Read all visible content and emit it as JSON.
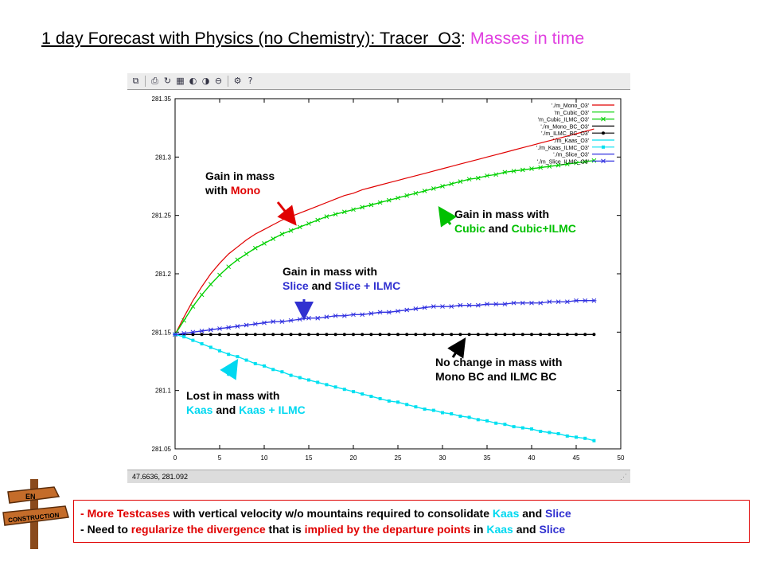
{
  "title": {
    "main": "1 day Forecast with Physics (no Chemistry): Tracer_O3",
    "sep": ": ",
    "highlight": "Masses in time",
    "highlight_color": "#e040e0"
  },
  "toolbar": {
    "icons": [
      "copy-icon",
      "print-icon",
      "replot-icon",
      "grid-icon",
      "zoom-prev-icon",
      "zoom-next-icon",
      "unzoom-icon",
      "settings-icon",
      "help-icon"
    ]
  },
  "status": {
    "coords": "47.6636, 281.092"
  },
  "chart_data": {
    "type": "line",
    "xlim": [
      0,
      50
    ],
    "ylim": [
      281.05,
      281.35
    ],
    "x_ticks": [
      "0",
      "5",
      "10",
      "15",
      "20",
      "25",
      "30",
      "35",
      "40",
      "45",
      "50"
    ],
    "y_ticks": [
      "281.05",
      "281.1",
      "281.15",
      "281.2",
      "281.25",
      "281.3",
      "281.35"
    ],
    "grid": false,
    "legend_position": "top-right",
    "x": [
      0,
      1,
      2,
      3,
      4,
      5,
      6,
      7,
      8,
      9,
      10,
      11,
      12,
      13,
      14,
      15,
      16,
      17,
      18,
      19,
      20,
      21,
      22,
      23,
      24,
      25,
      26,
      27,
      28,
      29,
      30,
      31,
      32,
      33,
      34,
      35,
      36,
      37,
      38,
      39,
      40,
      41,
      42,
      43,
      44,
      45,
      46,
      47
    ],
    "series": [
      {
        "name": "'./m_Mono_O3'",
        "color": "#e00000",
        "marker": "none",
        "values": [
          281.148,
          281.163,
          281.177,
          281.189,
          281.2,
          281.209,
          281.217,
          281.223,
          281.229,
          281.234,
          281.238,
          281.242,
          281.246,
          281.249,
          281.252,
          281.255,
          281.258,
          281.261,
          281.264,
          281.267,
          281.269,
          281.272,
          281.274,
          281.276,
          281.278,
          281.28,
          281.282,
          281.284,
          281.286,
          281.288,
          281.29,
          281.292,
          281.294,
          281.296,
          281.298,
          281.3,
          281.302,
          281.304,
          281.306,
          281.308,
          281.31,
          281.312,
          281.314,
          281.316,
          281.318,
          281.32,
          281.322,
          281.324
        ]
      },
      {
        "name": "'m_Cubic_O3'",
        "color": "#00d000",
        "marker": "none",
        "values": [
          281.148,
          281.16,
          281.172,
          281.182,
          281.191,
          281.199,
          281.206,
          281.212,
          281.217,
          281.222,
          281.226,
          281.23,
          281.234,
          281.237,
          281.24,
          281.243,
          281.246,
          281.249,
          281.251,
          281.253,
          281.255,
          281.257,
          281.259,
          281.261,
          281.263,
          281.265,
          281.267,
          281.269,
          281.271,
          281.273,
          281.275,
          281.277,
          281.279,
          281.281,
          281.282,
          281.284,
          281.285,
          281.287,
          281.288,
          281.289,
          281.29,
          281.291,
          281.292,
          281.293,
          281.294,
          281.295,
          281.296,
          281.297
        ]
      },
      {
        "name": "'m_Cubic_ILMC_O3'",
        "color": "#00d000",
        "marker": "x",
        "values": [
          281.148,
          281.16,
          281.172,
          281.182,
          281.191,
          281.199,
          281.206,
          281.212,
          281.217,
          281.222,
          281.226,
          281.23,
          281.234,
          281.237,
          281.24,
          281.243,
          281.246,
          281.249,
          281.251,
          281.253,
          281.255,
          281.257,
          281.259,
          281.261,
          281.263,
          281.265,
          281.267,
          281.269,
          281.271,
          281.273,
          281.275,
          281.277,
          281.279,
          281.281,
          281.282,
          281.284,
          281.285,
          281.287,
          281.288,
          281.289,
          281.29,
          281.291,
          281.292,
          281.293,
          281.294,
          281.295,
          281.296,
          281.297
        ]
      },
      {
        "name": "'./m_Mono_BC_O3'",
        "color": "#000000",
        "marker": "none",
        "values": [
          281.148,
          281.148,
          281.148,
          281.148,
          281.148,
          281.148,
          281.148,
          281.148,
          281.148,
          281.148,
          281.148,
          281.148,
          281.148,
          281.148,
          281.148,
          281.148,
          281.148,
          281.148,
          281.148,
          281.148,
          281.148,
          281.148,
          281.148,
          281.148,
          281.148,
          281.148,
          281.148,
          281.148,
          281.148,
          281.148,
          281.148,
          281.148,
          281.148,
          281.148,
          281.148,
          281.148,
          281.148,
          281.148,
          281.148,
          281.148,
          281.148,
          281.148,
          281.148,
          281.148,
          281.148,
          281.148,
          281.148,
          281.148
        ]
      },
      {
        "name": "'./m_ILMC_BC_O3'",
        "color": "#000000",
        "marker": "dot",
        "values": [
          281.148,
          281.148,
          281.148,
          281.148,
          281.148,
          281.148,
          281.148,
          281.148,
          281.148,
          281.148,
          281.148,
          281.148,
          281.148,
          281.148,
          281.148,
          281.148,
          281.148,
          281.148,
          281.148,
          281.148,
          281.148,
          281.148,
          281.148,
          281.148,
          281.148,
          281.148,
          281.148,
          281.148,
          281.148,
          281.148,
          281.148,
          281.148,
          281.148,
          281.148,
          281.148,
          281.148,
          281.148,
          281.148,
          281.148,
          281.148,
          281.148,
          281.148,
          281.148,
          281.148,
          281.148,
          281.148,
          281.148,
          281.148
        ]
      },
      {
        "name": "'./m_Kaas_O3'",
        "color": "#00e0f0",
        "marker": "none",
        "values": [
          281.148,
          281.146,
          281.143,
          281.14,
          281.137,
          281.134,
          281.131,
          281.129,
          281.126,
          281.123,
          281.121,
          281.118,
          281.116,
          281.113,
          281.111,
          281.109,
          281.107,
          281.105,
          281.103,
          281.101,
          281.099,
          281.097,
          281.095,
          281.093,
          281.091,
          281.09,
          281.088,
          281.086,
          281.084,
          281.083,
          281.081,
          281.08,
          281.078,
          281.077,
          281.075,
          281.074,
          281.072,
          281.071,
          281.069,
          281.068,
          281.067,
          281.065,
          281.064,
          281.063,
          281.061,
          281.06,
          281.059,
          281.057
        ]
      },
      {
        "name": "'./m_Kaas_ILMC_O3'",
        "color": "#00e0f0",
        "marker": "square",
        "values": [
          281.148,
          281.146,
          281.143,
          281.14,
          281.137,
          281.134,
          281.131,
          281.129,
          281.126,
          281.123,
          281.121,
          281.118,
          281.116,
          281.113,
          281.111,
          281.109,
          281.107,
          281.105,
          281.103,
          281.101,
          281.099,
          281.097,
          281.095,
          281.093,
          281.091,
          281.09,
          281.088,
          281.086,
          281.084,
          281.083,
          281.081,
          281.08,
          281.078,
          281.077,
          281.075,
          281.074,
          281.072,
          281.071,
          281.069,
          281.068,
          281.067,
          281.065,
          281.064,
          281.063,
          281.061,
          281.06,
          281.059,
          281.057
        ]
      },
      {
        "name": "'./m_Slice_O3'",
        "color": "#3030e0",
        "marker": "none",
        "values": [
          281.148,
          281.149,
          281.15,
          281.151,
          281.152,
          281.153,
          281.154,
          281.155,
          281.156,
          281.157,
          281.158,
          281.159,
          281.159,
          281.16,
          281.161,
          281.162,
          281.162,
          281.163,
          281.164,
          281.164,
          281.165,
          281.165,
          281.166,
          281.167,
          281.167,
          281.168,
          281.169,
          281.17,
          281.171,
          281.172,
          281.172,
          281.172,
          281.173,
          281.173,
          281.173,
          281.174,
          281.174,
          281.174,
          281.175,
          281.175,
          281.175,
          281.175,
          281.176,
          281.176,
          281.176,
          281.177,
          281.177,
          281.177
        ]
      },
      {
        "name": "'./m_Slice_ILMC_O3'",
        "color": "#3030e0",
        "marker": "star",
        "values": [
          281.148,
          281.149,
          281.15,
          281.151,
          281.152,
          281.153,
          281.154,
          281.155,
          281.156,
          281.157,
          281.158,
          281.159,
          281.159,
          281.16,
          281.161,
          281.162,
          281.162,
          281.163,
          281.164,
          281.164,
          281.165,
          281.165,
          281.166,
          281.167,
          281.167,
          281.168,
          281.169,
          281.17,
          281.171,
          281.172,
          281.172,
          281.172,
          281.173,
          281.173,
          281.173,
          281.174,
          281.174,
          281.174,
          281.175,
          281.175,
          281.175,
          281.175,
          281.176,
          281.176,
          281.176,
          281.177,
          281.177,
          281.177
        ]
      }
    ]
  },
  "annotations": {
    "mono": {
      "l1": "Gain in mass",
      "l2_pre": "with ",
      "l2_hl": "Mono"
    },
    "cubic": {
      "l1": "Gain in mass with",
      "l2_a": "Cubic",
      "l2_and": " and ",
      "l2_b": "Cubic+ILMC"
    },
    "slice": {
      "l1": "Gain in mass with",
      "l2_a": "Slice",
      "l2_and": " and ",
      "l2_b": "Slice + ILMC"
    },
    "nochange": {
      "l1": "No change in mass with",
      "l2": "Mono BC and ILMC BC"
    },
    "kaas": {
      "l1": "Lost in mass with",
      "l2_a": "Kaas",
      "l2_and": " and ",
      "l2_b": "Kaas + ILMC"
    }
  },
  "notes": {
    "line1": {
      "dash": "- ",
      "a": "More Testcases",
      "b": " with vertical velocity w/o mountains required to consolidate ",
      "c": "Kaas",
      "d": " and ",
      "e": "Slice"
    },
    "line2": {
      "dash": "- ",
      "a": "Need to ",
      "b": "regularize the divergence",
      "c": " that is ",
      "d": "implied by the departure points",
      "e": " in ",
      "f": "Kaas",
      "g": " and ",
      "h": "Slice"
    }
  },
  "sign": {
    "line1": "EN",
    "line2": "CONSTRUCTION"
  }
}
